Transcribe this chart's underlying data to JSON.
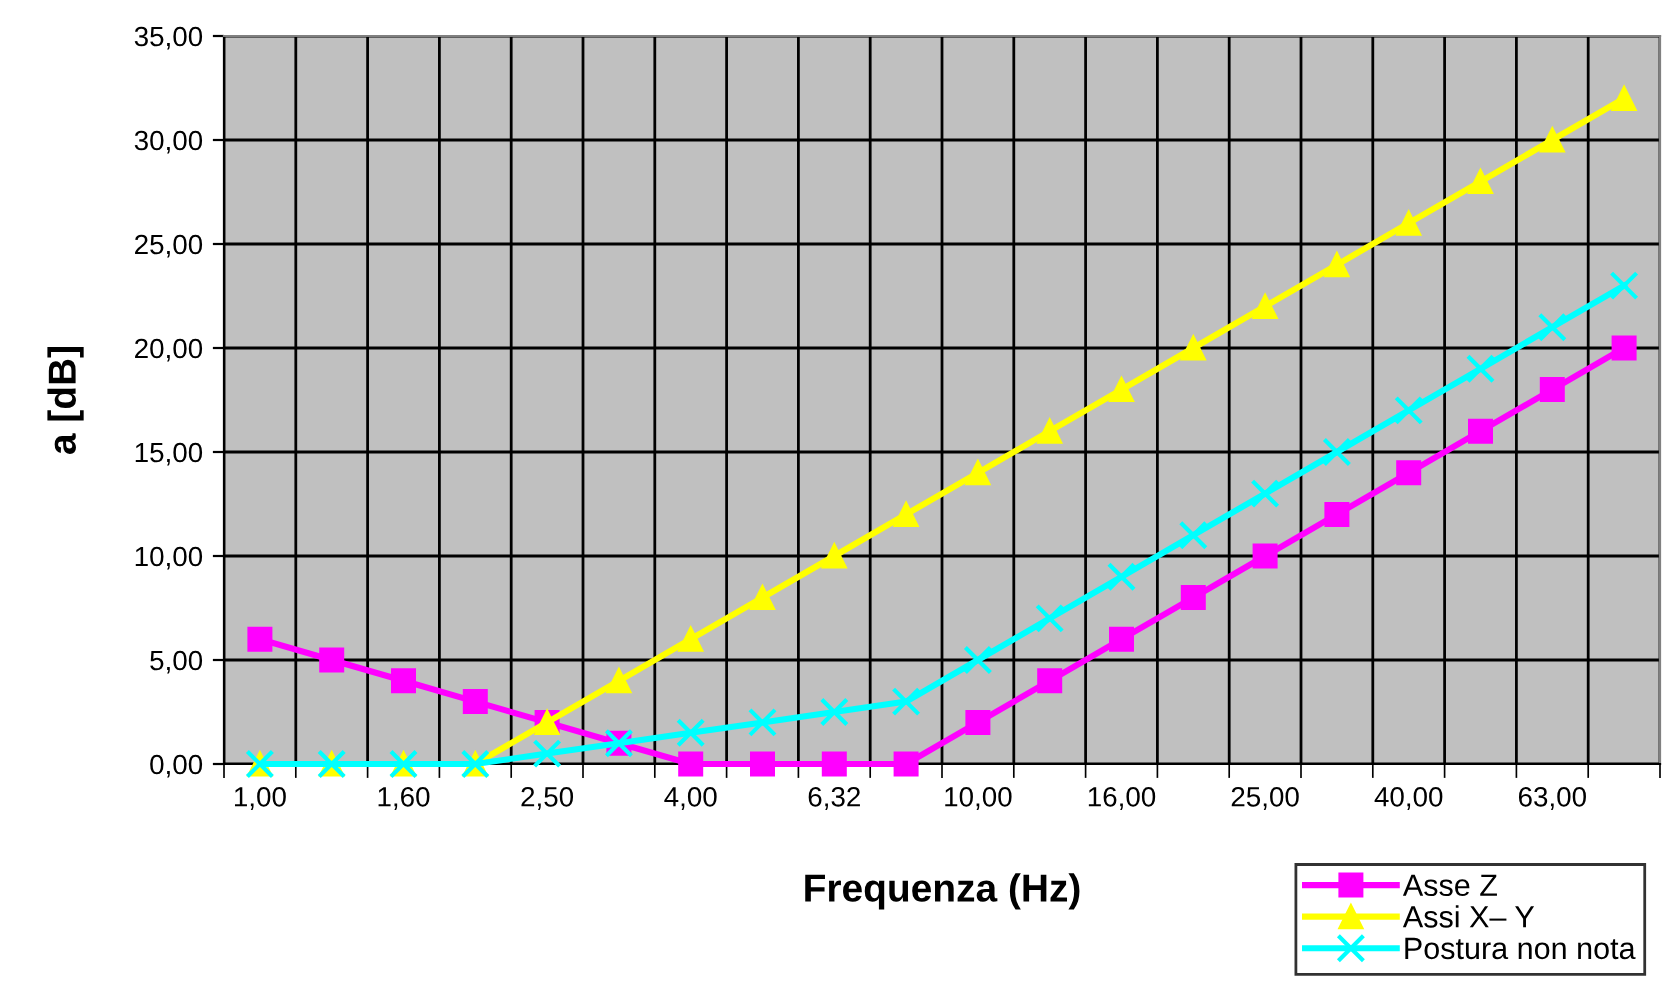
{
  "chart_data": {
    "type": "line",
    "xlabel": "Frequenza (Hz)",
    "ylabel": "a [dB]",
    "categories": [
      "1,00",
      null,
      "1,60",
      null,
      "2,50",
      null,
      "4,00",
      null,
      "6,32",
      null,
      "10,00",
      null,
      "16,00",
      null,
      "25,00",
      null,
      "40,00",
      null,
      "63,00",
      null
    ],
    "series": [
      {
        "name": "Asse Z",
        "color": "#ff00ff",
        "marker": "square",
        "values": [
          6,
          5,
          4,
          3,
          2,
          1,
          0,
          0,
          0,
          0,
          2,
          4,
          6,
          8,
          10,
          12,
          14,
          16,
          18,
          20
        ]
      },
      {
        "name": "Assi X– Y",
        "color": "#ffff00",
        "marker": "triangle",
        "values": [
          0,
          0,
          0,
          0,
          2,
          4,
          6,
          8,
          10,
          12,
          14,
          16,
          18,
          20,
          22,
          24,
          26,
          28,
          30,
          32
        ]
      },
      {
        "name": "Postura non nota",
        "color": "#00ffff",
        "marker": "cross",
        "values": [
          0,
          0,
          0,
          0,
          0.5,
          1,
          1.5,
          2,
          2.5,
          3,
          5,
          7,
          9,
          11,
          13,
          15,
          17,
          19,
          21,
          23
        ]
      }
    ],
    "ylim": [
      0,
      35
    ],
    "yticks": [
      {
        "value": 0,
        "label": "0,00"
      },
      {
        "value": 5,
        "label": "5,00"
      },
      {
        "value": 10,
        "label": "10,00"
      },
      {
        "value": 15,
        "label": "15,00"
      },
      {
        "value": 20,
        "label": "20,00"
      },
      {
        "value": 25,
        "label": "25,00"
      },
      {
        "value": 30,
        "label": "30,00"
      },
      {
        "value": 35,
        "label": "35,00"
      }
    ],
    "grid": true,
    "legend": "bottom right",
    "line_style": "solid"
  }
}
